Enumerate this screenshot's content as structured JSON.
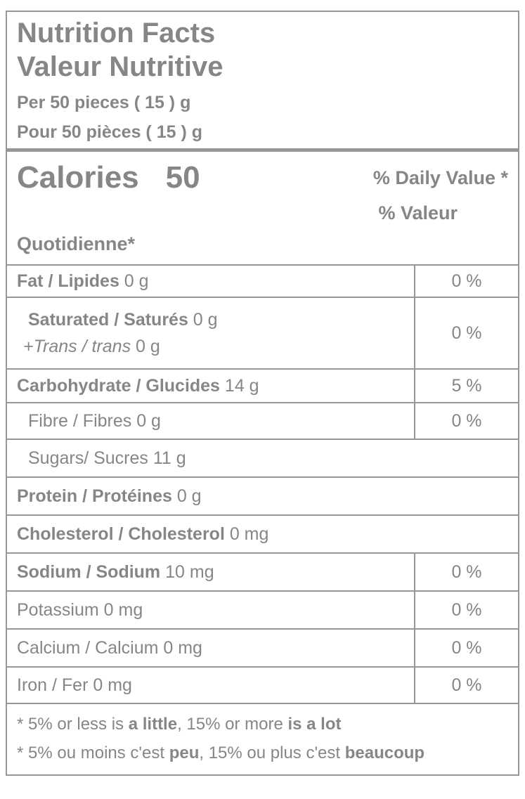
{
  "header": {
    "title_en": "Nutrition Facts",
    "title_fr": "Valeur Nutritive",
    "serving_en": "Per 50 pieces ( 15 ) g",
    "serving_fr": "Pour 50 pièces ( 15 ) g"
  },
  "calories": {
    "label": "Calories",
    "value": "50"
  },
  "dv_header": {
    "line1": "% Daily Value *",
    "line2": "% Valeur",
    "line3": "Quotidienne*"
  },
  "rows": [
    {
      "id": "fat",
      "lines": [
        {
          "indent": 0,
          "segments": [
            {
              "t": "Fat / Lipides",
              "b": true
            },
            {
              "t": " 0 g"
            }
          ]
        }
      ],
      "dv": "0 %"
    },
    {
      "id": "saturated-trans",
      "lines": [
        {
          "indent": 1,
          "segments": [
            {
              "t": "Saturated / Saturés",
              "b": true
            },
            {
              "t": " 0 g"
            }
          ]
        },
        {
          "indent": 2,
          "segments": [
            {
              "t": "+Trans / trans",
              "i": true
            },
            {
              "t": " 0 g"
            }
          ]
        }
      ],
      "dv": "0 %"
    },
    {
      "id": "carbohydrate",
      "lines": [
        {
          "indent": 0,
          "segments": [
            {
              "t": "Carbohydrate / Glucides",
              "b": true
            },
            {
              "t": " 14 g"
            }
          ]
        }
      ],
      "dv": "5 %"
    },
    {
      "id": "fibre",
      "lines": [
        {
          "indent": 1,
          "segments": [
            {
              "t": "Fibre / Fibres 0 g"
            }
          ]
        }
      ],
      "dv": "0 %"
    },
    {
      "id": "sugars",
      "lines": [
        {
          "indent": 1,
          "segments": [
            {
              "t": "Sugars/ Sucres 11 g"
            }
          ]
        }
      ],
      "dv": null
    },
    {
      "id": "protein",
      "lines": [
        {
          "indent": 0,
          "segments": [
            {
              "t": "Protein / Protéines",
              "b": true
            },
            {
              "t": " 0 g"
            }
          ]
        }
      ],
      "dv": null
    },
    {
      "id": "cholesterol",
      "lines": [
        {
          "indent": 0,
          "segments": [
            {
              "t": "Cholesterol / Cholesterol",
              "b": true
            },
            {
              "t": " 0 mg"
            }
          ]
        }
      ],
      "dv": null
    },
    {
      "id": "sodium",
      "lines": [
        {
          "indent": 0,
          "segments": [
            {
              "t": "Sodium / Sodium",
              "b": true
            },
            {
              "t": " 10 mg"
            }
          ]
        }
      ],
      "dv": "0 %"
    },
    {
      "id": "potassium",
      "lines": [
        {
          "indent": 0,
          "segments": [
            {
              "t": "Potassium 0 mg"
            }
          ]
        }
      ],
      "dv": "0 %"
    },
    {
      "id": "calcium",
      "lines": [
        {
          "indent": 0,
          "segments": [
            {
              "t": "Calcium / Calcium 0 mg"
            }
          ]
        }
      ],
      "dv": "0 %"
    },
    {
      "id": "iron",
      "lines": [
        {
          "indent": 0,
          "segments": [
            {
              "t": "Iron / Fer 0 mg"
            }
          ]
        }
      ],
      "dv": "0 %"
    }
  ],
  "footnotes": [
    {
      "id": "en",
      "segments": [
        {
          "t": "* 5% or less is "
        },
        {
          "t": "a little",
          "b": true
        },
        {
          "t": ", 15% or more "
        },
        {
          "t": "is a lot",
          "b": true
        }
      ]
    },
    {
      "id": "fr",
      "segments": [
        {
          "t": "* 5% ou moins c'est "
        },
        {
          "t": "peu",
          "b": true
        },
        {
          "t": ", 15% ou plus c'est "
        },
        {
          "t": "beaucoup",
          "b": true
        }
      ]
    }
  ],
  "colors": {
    "text": "#868686",
    "border": "#979797",
    "background": "#ffffff"
  }
}
